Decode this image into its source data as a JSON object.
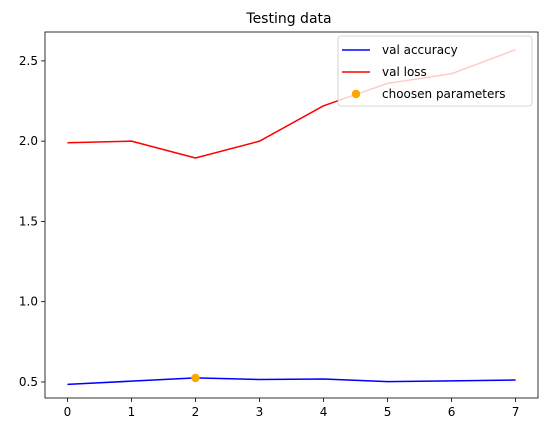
{
  "chart_data": {
    "type": "line",
    "title": "Testing data",
    "xlabel": "",
    "ylabel": "",
    "x": [
      0,
      1,
      2,
      3,
      4,
      5,
      6,
      7
    ],
    "xlim": [
      -0.35,
      7.35
    ],
    "ylim": [
      0.4,
      2.68
    ],
    "xticks": [
      0,
      1,
      2,
      3,
      4,
      5,
      6,
      7
    ],
    "yticks": [
      0.5,
      1.0,
      1.5,
      2.0,
      2.5
    ],
    "ytick_labels": [
      "0.5",
      "1.0",
      "1.5",
      "2.0",
      "2.5"
    ],
    "grid": false,
    "legend_position": "top-right",
    "series": [
      {
        "name": "val accuracy",
        "color": "#0000ff",
        "values": [
          0.485,
          0.505,
          0.525,
          0.515,
          0.518,
          0.502,
          0.507,
          0.512
        ]
      },
      {
        "name": "val loss",
        "color": "#ff0000",
        "values": [
          1.99,
          2.0,
          1.895,
          2.0,
          2.22,
          2.36,
          2.42,
          2.57
        ]
      }
    ],
    "points": [
      {
        "name": "choosen parameters",
        "color": "#ffa500",
        "x": 2,
        "y": 0.525
      }
    ]
  }
}
